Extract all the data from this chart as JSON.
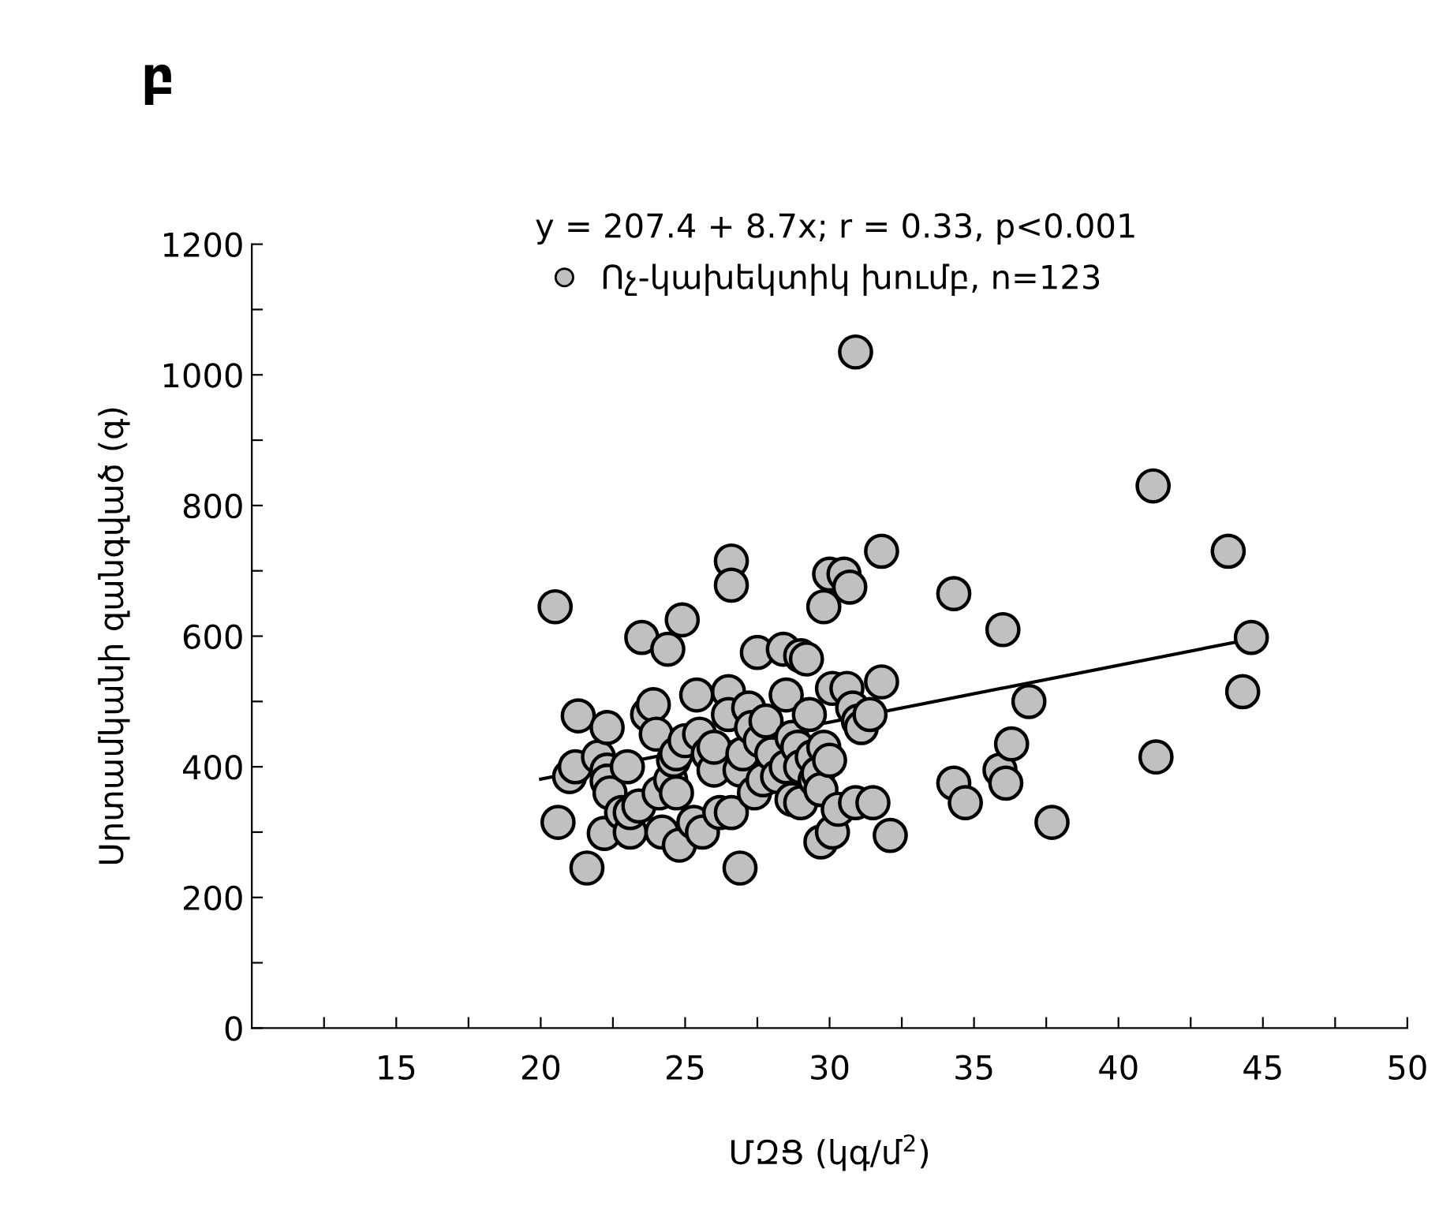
{
  "chart_data": {
    "type": "scatter",
    "title": "բ",
    "xlabel": "ՄԶՑ (կգ/մ$^{2}$)",
    "ylabel": "Սրտամկանի զանգված (գ)",
    "annotations": [
      "y = 207.4 + 8.7x; r = 0.33, p<0.001"
    ],
    "xlim": [
      10,
      50
    ],
    "ylim": [
      0,
      1200
    ],
    "xticks": [
      {
        "value": 12.5,
        "label": null
      },
      15,
      {
        "value": 17.5,
        "label": null
      },
      20,
      {
        "value": 22.5,
        "label": null
      },
      25,
      {
        "value": 27.5,
        "label": null
      },
      30,
      {
        "value": 32.5,
        "label": null
      },
      35,
      {
        "value": 37.5,
        "label": null
      },
      40,
      {
        "value": 42.5,
        "label": null
      },
      45,
      {
        "value": 47.5,
        "label": null
      },
      50
    ],
    "yticks": [
      0,
      {
        "value": 100,
        "label": null
      },
      200,
      {
        "value": 300,
        "label": null
      },
      400,
      {
        "value": 500,
        "label": null
      },
      600,
      {
        "value": 700,
        "label": null
      },
      800,
      {
        "value": 900,
        "label": null
      },
      1000,
      {
        "value": 1100,
        "label": null
      },
      1200
    ],
    "grid": false,
    "legend": "top left",
    "marker": "circle",
    "series": [
      {
        "name": "Ոչ-կախեկտիկ խումբ, n=123",
        "color": "#c0c0c0",
        "x": [
          20.5,
          20.6,
          21.0,
          21.2,
          21.3,
          21.6,
          22.0,
          22.2,
          22.3,
          22.3,
          22.3,
          22.4,
          22.8,
          23.0,
          23.1,
          23.1,
          23.4,
          23.5,
          23.7,
          23.9,
          24.0,
          24.1,
          24.2,
          24.4,
          24.5,
          24.6,
          24.7,
          24.7,
          24.8,
          24.9,
          25.0,
          25.3,
          25.4,
          25.5,
          25.6,
          25.8,
          26.0,
          26.0,
          26.2,
          26.5,
          26.5,
          26.6,
          26.6,
          26.6,
          26.9,
          26.9,
          27.0,
          27.2,
          27.3,
          27.4,
          27.5,
          27.6,
          27.7,
          27.8,
          28.0,
          28.2,
          28.4,
          28.5,
          28.5,
          28.7,
          28.7,
          28.9,
          29.0,
          29.0,
          29.0,
          29.2,
          29.3,
          29.4,
          29.5,
          29.6,
          29.7,
          29.7,
          29.8,
          29.8,
          30.0,
          30.0,
          30.1,
          30.1,
          30.3,
          30.5,
          30.6,
          30.7,
          30.8,
          30.9,
          30.9,
          31.0,
          31.1,
          31.4,
          31.5,
          31.8,
          31.8,
          32.1,
          34.3,
          34.3,
          34.7,
          36.0,
          35.9,
          36.1,
          36.3,
          36.9,
          37.7,
          41.2,
          41.3,
          43.8,
          44.3,
          44.6
        ],
        "values": [
          645,
          315,
          385,
          400,
          478,
          245,
          415,
          298,
          460,
          395,
          378,
          360,
          330,
          400,
          300,
          330,
          340,
          598,
          480,
          495,
          450,
          360,
          300,
          580,
          380,
          410,
          420,
          360,
          280,
          625,
          440,
          315,
          510,
          450,
          300,
          420,
          395,
          430,
          330,
          515,
          480,
          715,
          678,
          330,
          245,
          395,
          420,
          490,
          460,
          360,
          575,
          440,
          380,
          470,
          420,
          385,
          580,
          510,
          400,
          445,
          350,
          430,
          570,
          400,
          345,
          565,
          480,
          415,
          380,
          390,
          365,
          285,
          645,
          430,
          695,
          410,
          300,
          520,
          335,
          695,
          520,
          675,
          490,
          1035,
          345,
          470,
          460,
          480,
          345,
          730,
          530,
          295,
          665,
          375,
          345,
          610,
          395,
          375,
          435,
          500,
          315,
          830,
          415,
          730,
          515,
          598
        ]
      },
      {
        "type": "line",
        "marker": "none",
        "color": "#000000",
        "x": [
          20,
          45
        ],
        "values": [
          381,
          599
        ]
      }
    ]
  }
}
